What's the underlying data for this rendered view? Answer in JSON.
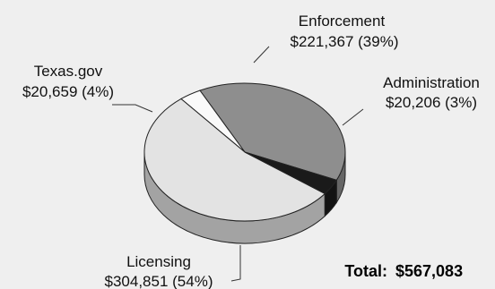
{
  "chart_data": {
    "type": "pie",
    "title": "",
    "slices": [
      {
        "name": "Enforcement",
        "amount": "$221,367",
        "percent": "39%",
        "value": 221367,
        "color": "#8e8e8e"
      },
      {
        "name": "Administration",
        "amount": "$20,206",
        "percent": "3%",
        "value": 20206,
        "color": "#fafafa"
      },
      {
        "name": "Licensing",
        "amount": "$304,851",
        "percent": "54%",
        "value": 304851,
        "color": "#e3e3e3"
      },
      {
        "name": "Texas.gov",
        "amount": "$20,659",
        "percent": "4%",
        "value": 20659,
        "color": "#1a1a1a"
      }
    ],
    "total_label": "Total:",
    "total_value": "$567,083"
  }
}
